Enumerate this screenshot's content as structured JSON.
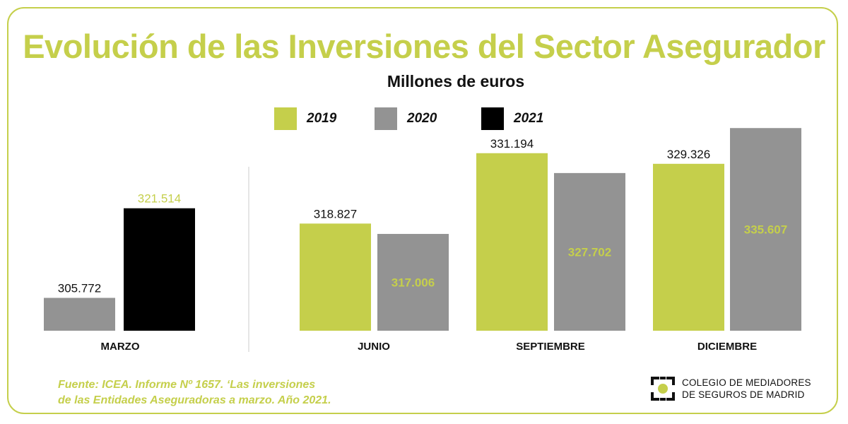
{
  "title": "Evolución de las Inversiones del Sector Asegurador",
  "subtitle": "Millones de euros",
  "legend": [
    {
      "label": "2019",
      "color": "#c5cf4b"
    },
    {
      "label": "2020",
      "color": "#939393"
    },
    {
      "label": "2021",
      "color": "#000000"
    }
  ],
  "chart_data": {
    "type": "bar",
    "title": "Evolución de las Inversiones del Sector Asegurador",
    "subtitle": "Millones de euros",
    "categories": [
      "MARZO",
      "JUNIO",
      "SEPTIEMBRE",
      "DICIEMBRE"
    ],
    "series": [
      {
        "name": "2019",
        "color": "#c5cf4b",
        "values": [
          null,
          318827,
          331194,
          329326
        ],
        "labels": [
          null,
          "318.827",
          "331.194",
          "329.326"
        ]
      },
      {
        "name": "2020",
        "color": "#939393",
        "values": [
          305772,
          317006,
          327702,
          335607
        ],
        "labels": [
          "305.772",
          "317.006",
          "327.702",
          "335.607"
        ]
      },
      {
        "name": "2021",
        "color": "#000000",
        "values": [
          321514,
          null,
          null,
          null
        ],
        "labels": [
          "321.514",
          null,
          null,
          null
        ]
      }
    ],
    "ylim": [
      300000,
      337000
    ],
    "grid": false,
    "legend_position": "top-center"
  },
  "source": {
    "line1": "Fuente: ICEA. Informe Nº 1657. ‘Las inversiones",
    "line2": "de las Entidades Aseguradoras a marzo. Año 2021."
  },
  "logo": {
    "line1": "COLEGIO DE MEDIADORES",
    "line2": "DE SEGUROS DE MADRID"
  }
}
